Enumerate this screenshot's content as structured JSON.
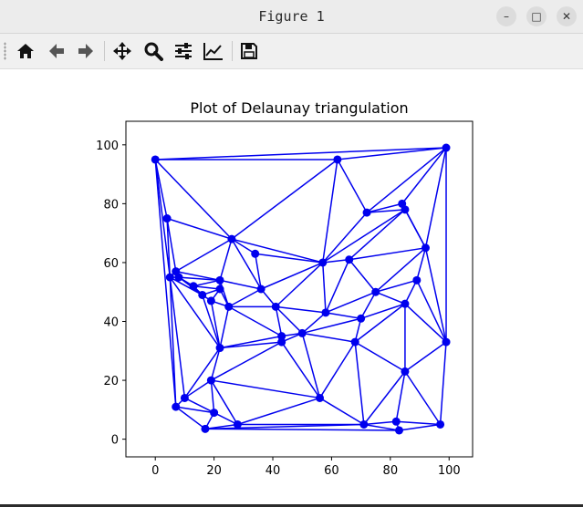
{
  "window": {
    "title": "Figure 1",
    "controls": {
      "minimize": "–",
      "maximize": "□",
      "close": "✕"
    }
  },
  "toolbar": {
    "items": [
      {
        "icon": "home-icon",
        "label": "Home"
      },
      {
        "icon": "back-arrow-icon",
        "label": "Back"
      },
      {
        "icon": "forward-arrow-icon",
        "label": "Forward"
      },
      {
        "icon": "pan-icon",
        "label": "Pan"
      },
      {
        "icon": "zoom-icon",
        "label": "Zoom"
      },
      {
        "icon": "subplots-icon",
        "label": "Configure subplots"
      },
      {
        "icon": "edit-curve-icon",
        "label": "Edit axis"
      },
      {
        "icon": "save-icon",
        "label": "Save"
      }
    ]
  },
  "colors": {
    "accent": "#0000ee",
    "axis": "#000000"
  },
  "chart_data": {
    "type": "scatter",
    "title": "Plot of Delaunay triangulation",
    "xlabel": "",
    "ylabel": "",
    "xlim": [
      -10,
      108
    ],
    "ylim": [
      -6,
      108
    ],
    "xticks": [
      0,
      20,
      40,
      60,
      80,
      100
    ],
    "yticks": [
      0,
      20,
      40,
      60,
      80,
      100
    ],
    "grid": false,
    "points": [
      [
        0,
        95
      ],
      [
        62,
        95
      ],
      [
        99,
        99
      ],
      [
        84,
        80
      ],
      [
        85,
        78
      ],
      [
        72,
        77
      ],
      [
        4,
        75
      ],
      [
        26,
        68
      ],
      [
        92,
        65
      ],
      [
        34,
        63
      ],
      [
        66,
        61
      ],
      [
        57,
        60
      ],
      [
        7,
        57
      ],
      [
        5,
        55
      ],
      [
        8,
        55
      ],
      [
        22,
        54
      ],
      [
        89,
        54
      ],
      [
        13,
        52
      ],
      [
        22,
        51
      ],
      [
        36,
        51
      ],
      [
        75,
        50
      ],
      [
        16,
        49
      ],
      [
        19,
        47
      ],
      [
        85,
        46
      ],
      [
        25,
        45
      ],
      [
        41,
        45
      ],
      [
        58,
        43
      ],
      [
        70,
        41
      ],
      [
        50,
        36
      ],
      [
        43,
        35
      ],
      [
        43,
        33
      ],
      [
        99,
        33
      ],
      [
        68,
        33
      ],
      [
        22,
        31
      ],
      [
        85,
        23
      ],
      [
        19,
        20
      ],
      [
        10,
        14
      ],
      [
        56,
        14
      ],
      [
        7,
        11
      ],
      [
        20,
        9
      ],
      [
        82,
        6
      ],
      [
        28,
        5
      ],
      [
        71,
        5
      ],
      [
        97,
        5
      ],
      [
        17,
        3.5
      ],
      [
        83,
        3
      ]
    ],
    "triangles": [
      [
        0,
        1,
        7
      ],
      [
        0,
        6,
        7
      ],
      [
        0,
        6,
        13
      ],
      [
        0,
        13,
        38
      ],
      [
        0,
        1,
        2
      ],
      [
        1,
        2,
        5
      ],
      [
        1,
        5,
        11
      ],
      [
        1,
        7,
        11
      ],
      [
        2,
        3,
        5
      ],
      [
        2,
        3,
        8
      ],
      [
        2,
        8,
        31
      ],
      [
        3,
        4,
        8
      ],
      [
        3,
        4,
        5
      ],
      [
        4,
        5,
        11
      ],
      [
        4,
        8,
        10
      ],
      [
        4,
        10,
        11
      ],
      [
        6,
        7,
        12
      ],
      [
        6,
        12,
        13
      ],
      [
        7,
        9,
        11
      ],
      [
        7,
        9,
        19
      ],
      [
        7,
        15,
        19
      ],
      [
        7,
        12,
        15
      ],
      [
        12,
        13,
        14
      ],
      [
        12,
        14,
        15
      ],
      [
        14,
        15,
        17
      ],
      [
        15,
        17,
        18
      ],
      [
        17,
        18,
        21
      ],
      [
        18,
        21,
        22
      ],
      [
        15,
        18,
        24
      ],
      [
        15,
        19,
        24
      ],
      [
        9,
        11,
        19
      ],
      [
        11,
        19,
        25
      ],
      [
        11,
        25,
        26
      ],
      [
        10,
        11,
        26
      ],
      [
        10,
        20,
        26
      ],
      [
        8,
        10,
        20
      ],
      [
        8,
        16,
        20
      ],
      [
        8,
        16,
        31
      ],
      [
        16,
        23,
        31
      ],
      [
        16,
        20,
        23
      ],
      [
        20,
        23,
        27
      ],
      [
        20,
        26,
        27
      ],
      [
        19,
        24,
        25
      ],
      [
        24,
        25,
        29
      ],
      [
        24,
        29,
        33
      ],
      [
        22,
        24,
        33
      ],
      [
        21,
        22,
        33
      ],
      [
        13,
        21,
        33
      ],
      [
        13,
        14,
        21
      ],
      [
        14,
        17,
        21
      ],
      [
        25,
        26,
        28
      ],
      [
        25,
        28,
        29
      ],
      [
        26,
        27,
        28
      ],
      [
        27,
        28,
        32
      ],
      [
        27,
        23,
        32
      ],
      [
        23,
        31,
        34
      ],
      [
        23,
        32,
        34
      ],
      [
        28,
        29,
        30
      ],
      [
        28,
        30,
        37
      ],
      [
        28,
        32,
        37
      ],
      [
        29,
        30,
        33
      ],
      [
        30,
        33,
        35
      ],
      [
        30,
        35,
        37
      ],
      [
        33,
        35,
        36
      ],
      [
        13,
        33,
        36
      ],
      [
        13,
        36,
        38
      ],
      [
        35,
        36,
        39
      ],
      [
        36,
        38,
        39
      ],
      [
        35,
        39,
        41
      ],
      [
        35,
        37,
        41
      ],
      [
        37,
        41,
        42
      ],
      [
        37,
        32,
        42
      ],
      [
        32,
        34,
        42
      ],
      [
        34,
        40,
        42
      ],
      [
        34,
        40,
        43
      ],
      [
        34,
        31,
        43
      ],
      [
        38,
        39,
        44
      ],
      [
        39,
        41,
        44
      ],
      [
        41,
        42,
        44
      ],
      [
        40,
        42,
        45
      ],
      [
        40,
        43,
        45
      ],
      [
        42,
        44,
        45
      ]
    ]
  }
}
